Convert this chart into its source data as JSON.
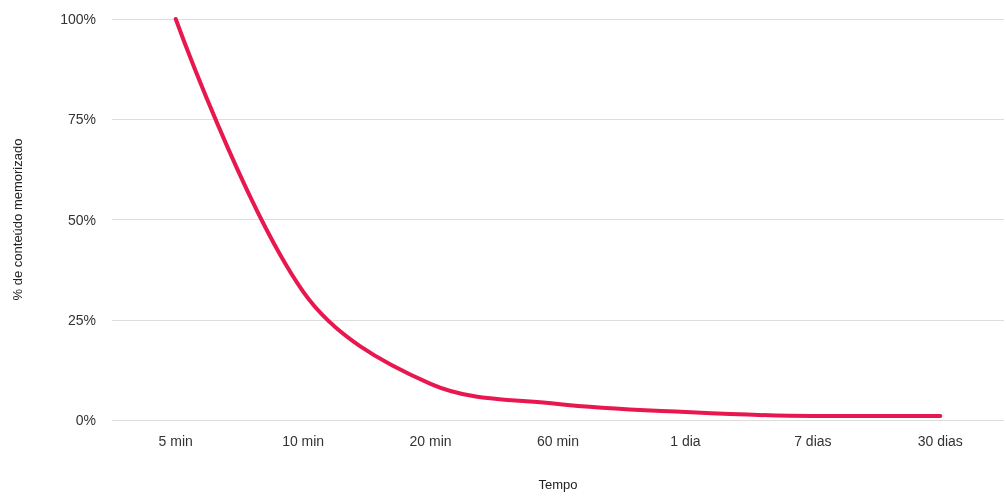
{
  "chart_data": {
    "type": "line",
    "xlabel": "Tempo",
    "ylabel": "% de conteúdo memorizado",
    "categories": [
      "5 min",
      "10 min",
      "20 min",
      "60 min",
      "1 dia",
      "7 dias",
      "30 dias"
    ],
    "series": [
      {
        "color": "#e8184f",
        "values": [
          100,
          32,
          9,
          4,
          2,
          1,
          1
        ]
      }
    ],
    "ylim": [
      0,
      100
    ],
    "yticks": [
      {
        "value": 0,
        "label": "0%"
      },
      {
        "value": 25,
        "label": "25%"
      },
      {
        "value": 50,
        "label": "50%"
      },
      {
        "value": 75,
        "label": "75%"
      },
      {
        "value": 100,
        "label": "100%"
      }
    ],
    "grid": "y",
    "marker": "none",
    "line_style": "solid"
  }
}
